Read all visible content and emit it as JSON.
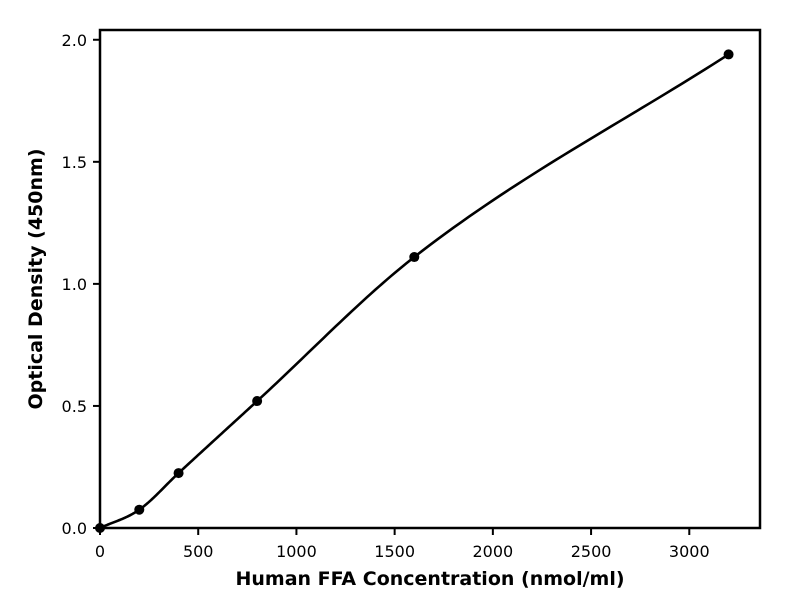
{
  "chart_data": {
    "type": "line",
    "title": "",
    "xlabel": "Human FFA Concentration (nmol/ml)",
    "ylabel": "Optical Density (450nm)",
    "xlim": [
      0,
      3360
    ],
    "ylim": [
      0,
      2.04
    ],
    "x_ticks": [
      0,
      500,
      1000,
      1500,
      2000,
      2500,
      3000
    ],
    "x_tick_labels": [
      "0",
      "500",
      "1000",
      "1500",
      "2000",
      "2500",
      "3000"
    ],
    "y_ticks": [
      0,
      0.5,
      1.0,
      1.5,
      2.0
    ],
    "y_tick_labels": [
      "0.0",
      "0.5",
      "1.0",
      "1.5",
      "2.0"
    ],
    "grid": false,
    "series": [
      {
        "x": [
          0,
          200,
          400,
          800,
          1600,
          3200
        ],
        "y": [
          0.0,
          0.075,
          0.225,
          0.52,
          1.11,
          1.94
        ],
        "color": "#000000",
        "markers": true,
        "fit_curve": true
      }
    ]
  }
}
